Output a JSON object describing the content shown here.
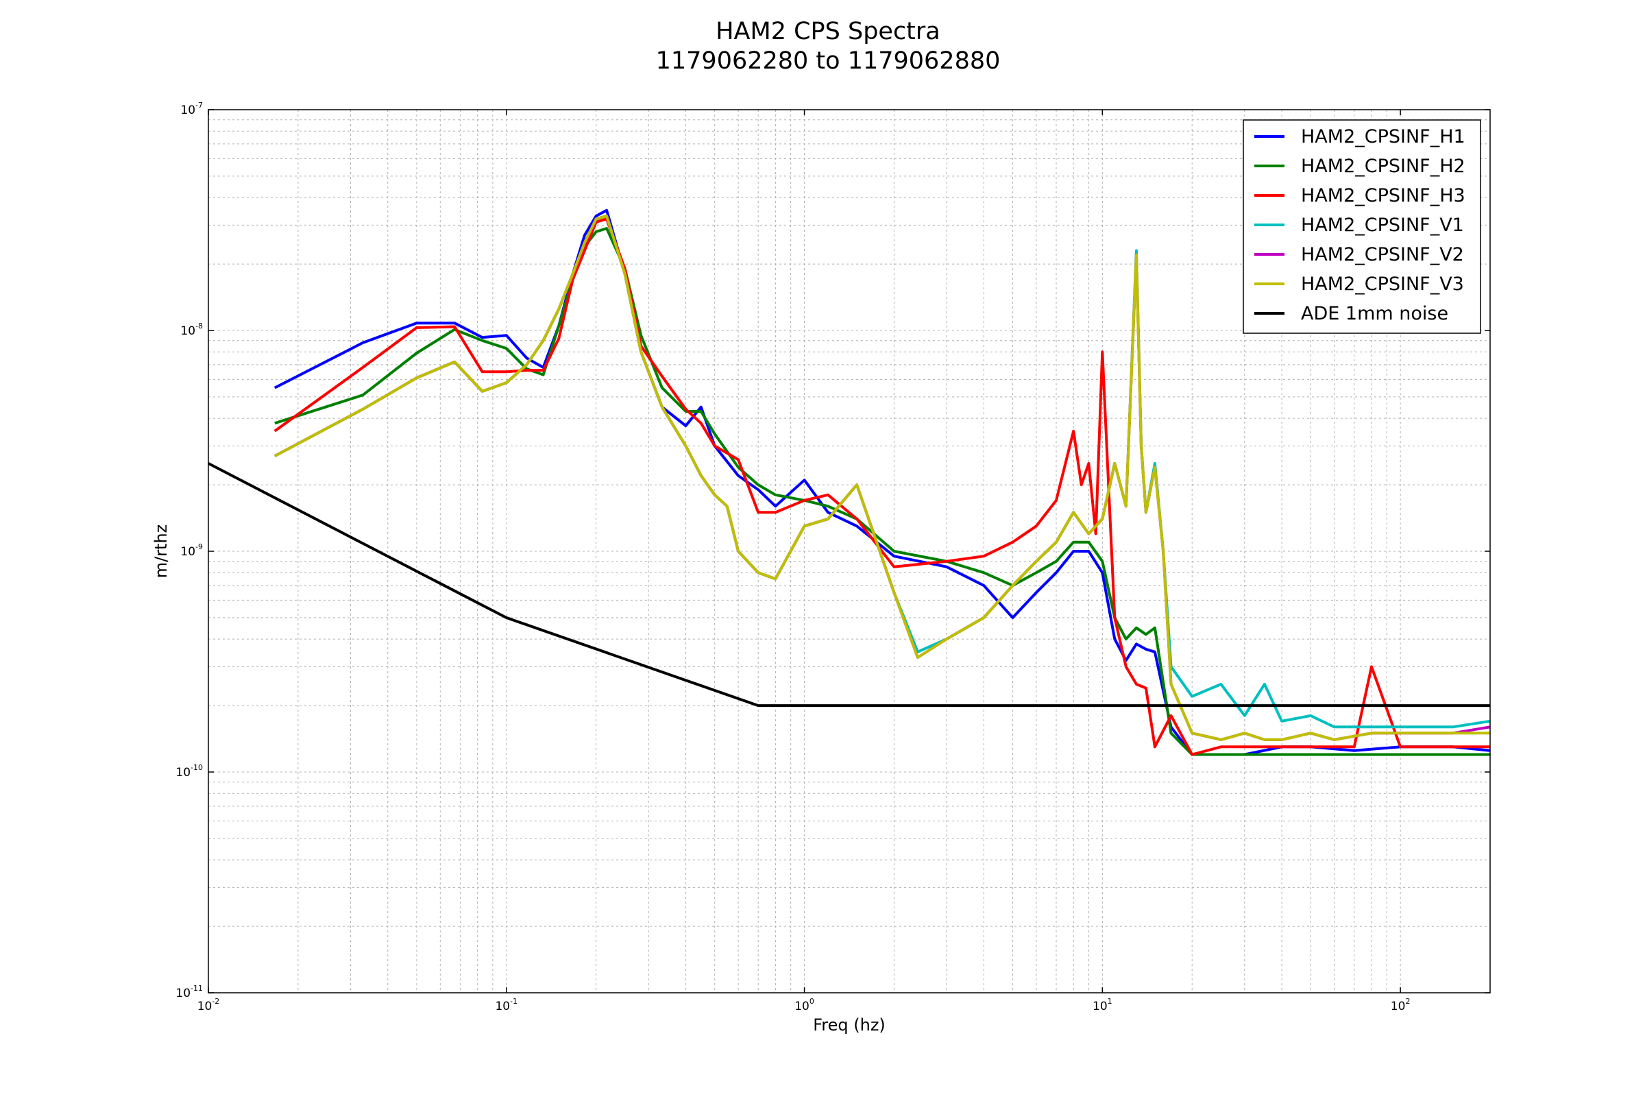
{
  "chart_data": {
    "type": "line",
    "title": "HAM2 CPS Spectra",
    "subtitle": "1179062280 to 1179062880",
    "xlabel": "Freq (hz)",
    "ylabel": "m/rthz",
    "xscale": "log",
    "yscale": "log",
    "xlim": [
      0.01,
      200
    ],
    "ylim": [
      1e-11,
      1e-07
    ],
    "grid": true,
    "legend_position": "top-right",
    "x_ticks": [
      {
        "value": 0.01,
        "base": "10",
        "exp": "-2"
      },
      {
        "value": 0.1,
        "base": "10",
        "exp": "-1"
      },
      {
        "value": 1,
        "base": "10",
        "exp": "0"
      },
      {
        "value": 10,
        "base": "10",
        "exp": "1"
      },
      {
        "value": 100,
        "base": "10",
        "exp": "2"
      }
    ],
    "y_ticks": [
      {
        "value": 1e-11,
        "base": "10",
        "exp": "-11"
      },
      {
        "value": 1e-10,
        "base": "10",
        "exp": "-10"
      },
      {
        "value": 1e-09,
        "base": "10",
        "exp": "-9"
      },
      {
        "value": 1e-08,
        "base": "10",
        "exp": "-8"
      },
      {
        "value": 1e-07,
        "base": "10",
        "exp": "-7"
      }
    ],
    "series": [
      {
        "name": "HAM2_CPSINF_H1",
        "color": "#0000ff",
        "x": [
          0.0167,
          0.033,
          0.05,
          0.067,
          0.083,
          0.1,
          0.117,
          0.133,
          0.15,
          0.167,
          0.183,
          0.2,
          0.217,
          0.25,
          0.283,
          0.333,
          0.4,
          0.45,
          0.5,
          0.6,
          0.7,
          0.8,
          1.0,
          1.2,
          1.5,
          2.0,
          3.0,
          4.0,
          5.0,
          6.0,
          7.0,
          8.0,
          9.0,
          10.0,
          11.0,
          12.0,
          13.0,
          14.0,
          15.0,
          17.0,
          20.0,
          30.0,
          40.0,
          50.0,
          70.0,
          100.0,
          150.0,
          200.0
        ],
        "y": [
          5.5e-09,
          8.8e-09,
          1.08e-08,
          1.08e-08,
          9.3e-09,
          9.5e-09,
          7.5e-09,
          6.8e-09,
          1.05e-08,
          1.8e-08,
          2.7e-08,
          3.3e-08,
          3.5e-08,
          1.8e-08,
          8e-09,
          4.5e-09,
          3.7e-09,
          4.5e-09,
          3e-09,
          2.2e-09,
          1.9e-09,
          1.6e-09,
          2.1e-09,
          1.5e-09,
          1.3e-09,
          9.5e-10,
          8.5e-10,
          7e-10,
          5e-10,
          6.5e-10,
          8e-10,
          1e-09,
          1e-09,
          8e-10,
          4e-10,
          3.2e-10,
          3.8e-10,
          3.6e-10,
          3.5e-10,
          1.6e-10,
          1.2e-10,
          1.2e-10,
          1.3e-10,
          1.3e-10,
          1.25e-10,
          1.3e-10,
          1.3e-10,
          1.25e-10
        ]
      },
      {
        "name": "HAM2_CPSINF_H2",
        "color": "#008000",
        "x": [
          0.0167,
          0.033,
          0.05,
          0.067,
          0.083,
          0.1,
          0.117,
          0.133,
          0.15,
          0.167,
          0.183,
          0.2,
          0.217,
          0.25,
          0.283,
          0.333,
          0.4,
          0.45,
          0.5,
          0.6,
          0.7,
          0.8,
          1.0,
          1.2,
          1.5,
          2.0,
          3.0,
          4.0,
          5.0,
          6.0,
          7.0,
          8.0,
          9.0,
          10.0,
          11.0,
          12.0,
          13.0,
          14.0,
          15.0,
          17.0,
          20.0,
          30.0,
          40.0,
          50.0,
          70.0,
          100.0,
          150.0,
          200.0
        ],
        "y": [
          3.8e-09,
          5.1e-09,
          7.9e-09,
          1.01e-08,
          9e-09,
          8.3e-09,
          6.7e-09,
          6.3e-09,
          1.05e-08,
          1.7e-08,
          2.4e-08,
          2.8e-08,
          2.9e-08,
          1.9e-08,
          9.5e-09,
          5.5e-09,
          4.3e-09,
          4.3e-09,
          3.4e-09,
          2.4e-09,
          2e-09,
          1.8e-09,
          1.7e-09,
          1.6e-09,
          1.4e-09,
          1e-09,
          9e-10,
          8e-10,
          7e-10,
          8e-10,
          9e-10,
          1.1e-09,
          1.1e-09,
          9e-10,
          5e-10,
          4e-10,
          4.5e-10,
          4.2e-10,
          4.5e-10,
          1.5e-10,
          1.2e-10,
          1.2e-10,
          1.2e-10,
          1.2e-10,
          1.2e-10,
          1.2e-10,
          1.2e-10,
          1.2e-10
        ]
      },
      {
        "name": "HAM2_CPSINF_H3",
        "color": "#ff0000",
        "x": [
          0.0167,
          0.033,
          0.05,
          0.067,
          0.083,
          0.1,
          0.117,
          0.133,
          0.15,
          0.167,
          0.183,
          0.2,
          0.217,
          0.25,
          0.283,
          0.333,
          0.4,
          0.45,
          0.5,
          0.6,
          0.7,
          0.8,
          1.0,
          1.2,
          1.5,
          2.0,
          3.0,
          4.0,
          5.0,
          6.0,
          7.0,
          8.0,
          8.5,
          9.0,
          9.5,
          10.0,
          11.0,
          12.0,
          13.0,
          14.0,
          15.0,
          17.0,
          20.0,
          25.0,
          30.0,
          40.0,
          50.0,
          70.0,
          80.0,
          100.0,
          150.0,
          200.0
        ],
        "y": [
          3.5e-09,
          6.8e-09,
          1.03e-08,
          1.04e-08,
          6.5e-09,
          6.5e-09,
          6.6e-09,
          6.6e-09,
          9.2e-09,
          1.7e-08,
          2.3e-08,
          3.1e-08,
          3.2e-08,
          1.9e-08,
          8.5e-09,
          6.2e-09,
          4.4e-09,
          3.8e-09,
          3e-09,
          2.6e-09,
          1.5e-09,
          1.5e-09,
          1.7e-09,
          1.8e-09,
          1.4e-09,
          8.5e-10,
          9e-10,
          9.5e-10,
          1.1e-09,
          1.3e-09,
          1.7e-09,
          3.5e-09,
          2e-09,
          2.5e-09,
          1.2e-09,
          8e-09,
          5e-10,
          3e-10,
          2.5e-10,
          2.4e-10,
          1.3e-10,
          1.8e-10,
          1.2e-10,
          1.3e-10,
          1.3e-10,
          1.3e-10,
          1.3e-10,
          1.3e-10,
          3e-10,
          1.3e-10,
          1.3e-10,
          1.3e-10
        ]
      },
      {
        "name": "HAM2_CPSINF_V1",
        "color": "#00bfbf",
        "x": [
          0.0167,
          0.033,
          0.05,
          0.067,
          0.083,
          0.1,
          0.117,
          0.133,
          0.15,
          0.167,
          0.183,
          0.2,
          0.217,
          0.25,
          0.283,
          0.333,
          0.4,
          0.45,
          0.5,
          0.55,
          0.6,
          0.7,
          0.8,
          1.0,
          1.2,
          1.5,
          2.0,
          2.4,
          3.0,
          4.0,
          5.0,
          6.0,
          7.0,
          8.0,
          9.0,
          10.0,
          11.0,
          12.0,
          13.0,
          13.5,
          14.0,
          15.0,
          16.0,
          17.0,
          20.0,
          25.0,
          30.0,
          35.0,
          40.0,
          50.0,
          60.0,
          80.0,
          100.0,
          150.0,
          200.0
        ],
        "y": [
          2.7e-09,
          4.4e-09,
          6.1e-09,
          7.2e-09,
          5.3e-09,
          5.8e-09,
          7e-09,
          9e-09,
          1.25e-08,
          1.8e-08,
          2.5e-08,
          3.2e-08,
          3.3e-08,
          1.8e-08,
          8e-09,
          4.5e-09,
          3e-09,
          2.2e-09,
          1.8e-09,
          1.6e-09,
          1e-09,
          8e-10,
          7.5e-10,
          1.3e-09,
          1.4e-09,
          2e-09,
          6.5e-10,
          3.5e-10,
          4e-10,
          5e-10,
          7e-10,
          9e-10,
          1.1e-09,
          1.5e-09,
          1.2e-09,
          1.4e-09,
          2.5e-09,
          1.6e-09,
          2.3e-08,
          3e-09,
          1.5e-09,
          2.5e-09,
          1e-09,
          3e-10,
          2.2e-10,
          2.5e-10,
          1.8e-10,
          2.5e-10,
          1.7e-10,
          1.8e-10,
          1.6e-10,
          1.6e-10,
          1.6e-10,
          1.6e-10,
          1.7e-10
        ]
      },
      {
        "name": "HAM2_CPSINF_V2",
        "color": "#bf00bf",
        "x": [
          0.0167,
          0.033,
          0.05,
          0.067,
          0.083,
          0.1,
          0.117,
          0.133,
          0.15,
          0.167,
          0.183,
          0.2,
          0.217,
          0.25,
          0.283,
          0.333,
          0.4,
          0.45,
          0.5,
          0.55,
          0.6,
          0.7,
          0.8,
          1.0,
          1.2,
          1.5,
          2.0,
          2.4,
          3.0,
          4.0,
          5.0,
          6.0,
          7.0,
          8.0,
          9.0,
          10.0,
          11.0,
          12.0,
          13.0,
          13.5,
          14.0,
          15.0,
          16.0,
          17.0,
          20.0,
          25.0,
          30.0,
          35.0,
          40.0,
          50.0,
          60.0,
          80.0,
          100.0,
          150.0,
          200.0
        ],
        "y": [
          2.7e-09,
          4.4e-09,
          6.1e-09,
          7.2e-09,
          5.3e-09,
          5.8e-09,
          7e-09,
          9e-09,
          1.25e-08,
          1.8e-08,
          2.5e-08,
          3.2e-08,
          3.3e-08,
          1.8e-08,
          8e-09,
          4.5e-09,
          3e-09,
          2.2e-09,
          1.8e-09,
          1.6e-09,
          1e-09,
          8e-10,
          7.5e-10,
          1.3e-09,
          1.4e-09,
          2e-09,
          6.5e-10,
          3.3e-10,
          4e-10,
          5e-10,
          7e-10,
          9e-10,
          1.1e-09,
          1.5e-09,
          1.2e-09,
          1.4e-09,
          2.5e-09,
          1.6e-09,
          2.2e-08,
          3e-09,
          1.5e-09,
          2.4e-09,
          1e-09,
          2.5e-10,
          1.5e-10,
          1.4e-10,
          1.5e-10,
          1.4e-10,
          1.4e-10,
          1.5e-10,
          1.4e-10,
          1.5e-10,
          1.5e-10,
          1.5e-10,
          1.6e-10
        ]
      },
      {
        "name": "HAM2_CPSINF_V3",
        "color": "#bfbf00",
        "x": [
          0.0167,
          0.033,
          0.05,
          0.067,
          0.083,
          0.1,
          0.117,
          0.133,
          0.15,
          0.167,
          0.183,
          0.2,
          0.217,
          0.25,
          0.283,
          0.333,
          0.4,
          0.45,
          0.5,
          0.55,
          0.6,
          0.7,
          0.8,
          1.0,
          1.2,
          1.5,
          2.0,
          2.4,
          3.0,
          4.0,
          5.0,
          6.0,
          7.0,
          8.0,
          9.0,
          10.0,
          11.0,
          12.0,
          13.0,
          13.5,
          14.0,
          15.0,
          16.0,
          17.0,
          20.0,
          25.0,
          30.0,
          35.0,
          40.0,
          50.0,
          60.0,
          80.0,
          100.0,
          150.0,
          200.0
        ],
        "y": [
          2.7e-09,
          4.4e-09,
          6.1e-09,
          7.2e-09,
          5.3e-09,
          5.8e-09,
          7e-09,
          9e-09,
          1.25e-08,
          1.8e-08,
          2.5e-08,
          3.2e-08,
          3.3e-08,
          1.8e-08,
          8e-09,
          4.5e-09,
          3e-09,
          2.2e-09,
          1.8e-09,
          1.6e-09,
          1e-09,
          8e-10,
          7.5e-10,
          1.3e-09,
          1.4e-09,
          2e-09,
          6.5e-10,
          3.3e-10,
          4e-10,
          5e-10,
          7e-10,
          9e-10,
          1.1e-09,
          1.5e-09,
          1.2e-09,
          1.4e-09,
          2.5e-09,
          1.6e-09,
          2.2e-08,
          3e-09,
          1.5e-09,
          2.4e-09,
          1e-09,
          2.5e-10,
          1.5e-10,
          1.4e-10,
          1.5e-10,
          1.4e-10,
          1.4e-10,
          1.5e-10,
          1.4e-10,
          1.5e-10,
          1.5e-10,
          1.5e-10,
          1.5e-10
        ]
      },
      {
        "name": "ADE 1mm noise",
        "color": "#000000",
        "x": [
          0.01,
          0.1,
          0.7,
          200.0
        ],
        "y": [
          2.5e-09,
          5e-10,
          2e-10,
          2e-10
        ]
      }
    ]
  }
}
